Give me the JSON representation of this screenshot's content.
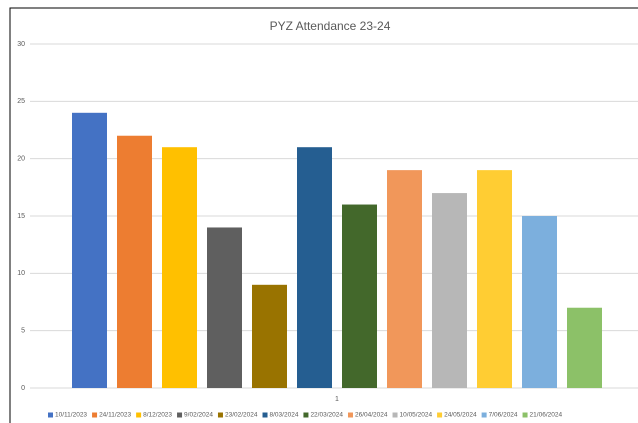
{
  "chart_data": {
    "type": "bar",
    "title": "PYZ Attendance 23-24",
    "categories": [
      "1"
    ],
    "series": [
      {
        "name": "10/11/2023",
        "color": "#4472c4",
        "values": [
          24
        ]
      },
      {
        "name": "24/11/2023",
        "color": "#ed7d31",
        "values": [
          22
        ]
      },
      {
        "name": "8/12/2023",
        "color": "#ffc000",
        "values": [
          21
        ]
      },
      {
        "name": "9/02/2024",
        "color": "#5f5f5f",
        "values": [
          14
        ]
      },
      {
        "name": "23/02/2024",
        "color": "#997300",
        "values": [
          9
        ]
      },
      {
        "name": "8/03/2024",
        "color": "#255e91",
        "values": [
          21
        ]
      },
      {
        "name": "22/03/2024",
        "color": "#43682b",
        "values": [
          16
        ]
      },
      {
        "name": "26/04/2024",
        "color": "#f1975a",
        "values": [
          19
        ]
      },
      {
        "name": "10/05/2024",
        "color": "#b7b7b7",
        "values": [
          17
        ]
      },
      {
        "name": "24/05/2024",
        "color": "#ffcd33",
        "values": [
          19
        ]
      },
      {
        "name": "7/06/2024",
        "color": "#7cafdd",
        "values": [
          15
        ]
      },
      {
        "name": "21/06/2024",
        "color": "#8cc168",
        "values": [
          7
        ]
      }
    ],
    "ylim": [
      0,
      30
    ],
    "yticks": [
      0,
      5,
      10,
      15,
      20,
      25,
      30
    ],
    "grid": true,
    "legend": "bottom"
  }
}
